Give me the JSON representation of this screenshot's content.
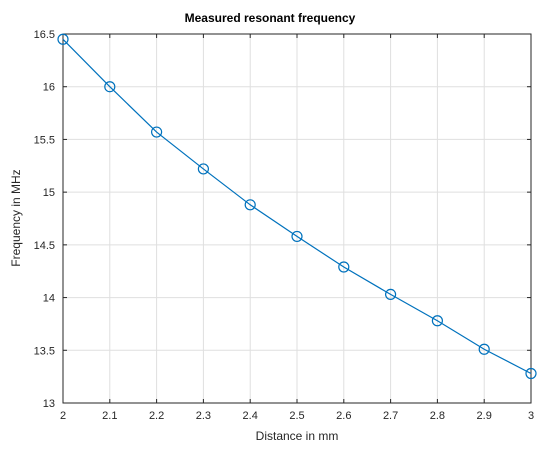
{
  "chart_data": {
    "type": "line",
    "title": "Measured resonant frequency",
    "xlabel": "Distance in mm",
    "ylabel": "Frequency in MHz",
    "xlim": [
      2,
      3
    ],
    "ylim": [
      13,
      16.5
    ],
    "xticks": [
      2,
      2.1,
      2.2,
      2.3,
      2.4,
      2.5,
      2.6,
      2.7,
      2.8,
      2.9,
      3
    ],
    "yticks": [
      13,
      13.5,
      14,
      14.5,
      15,
      15.5,
      16,
      16.5
    ],
    "xtick_labels": [
      "2",
      "2.1",
      "2.2",
      "2.3",
      "2.4",
      "2.5",
      "2.6",
      "2.7",
      "2.8",
      "2.9",
      "3"
    ],
    "ytick_labels": [
      "13",
      "13.5",
      "14",
      "14.5",
      "15",
      "15.5",
      "16",
      "16.5"
    ],
    "grid": true,
    "marker": "circle",
    "colors": {
      "series": "#0072bd",
      "grid": "#dfdfdf",
      "axis": "#262626"
    },
    "series": [
      {
        "x": [
          2,
          2.1,
          2.2,
          2.3,
          2.4,
          2.5,
          2.6,
          2.7,
          2.8,
          2.9,
          3
        ],
        "y": [
          16.45,
          16.0,
          15.57,
          15.22,
          14.88,
          14.58,
          14.29,
          14.03,
          13.78,
          13.51,
          13.28
        ]
      }
    ]
  }
}
